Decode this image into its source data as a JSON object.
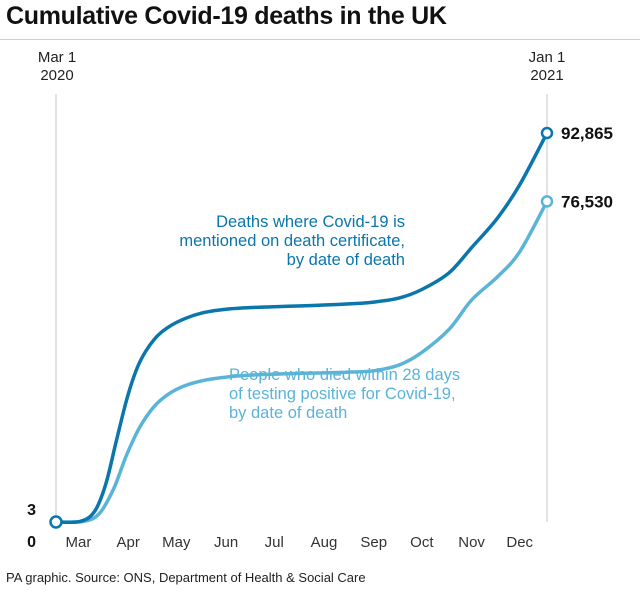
{
  "title": "Cumulative Covid-19 deaths in the UK",
  "start_label": {
    "month": "Mar 1",
    "year": "2020"
  },
  "end_label": {
    "month": "Jan 1",
    "year": "2021"
  },
  "source": "PA graphic. Source: ONS, Department of Health & Social Care",
  "colors": {
    "certificate": "#0a76ab",
    "test28": "#5ab4d8",
    "gridline": "#d9d9d9",
    "axis": "#222222"
  },
  "chart_data": {
    "type": "line",
    "title": "Cumulative Covid-19 deaths in the UK",
    "x_ticks": [
      "Mar",
      "Apr",
      "May",
      "Jun",
      "Jul",
      "Aug",
      "Sep",
      "Oct",
      "Nov",
      "Dec"
    ],
    "xlim": [
      "2020-03-01",
      "2021-01-01"
    ],
    "start_values": [
      "3",
      "0"
    ],
    "series": [
      {
        "key": "certificate",
        "annotation": [
          "Deaths where Covid-19 is",
          "mentioned on death certificate,",
          "by date of death"
        ],
        "end_label": "92,865",
        "points": [
          [
            "2020-03-01",
            3
          ],
          [
            "2020-03-16",
            150
          ],
          [
            "2020-03-25",
            2500
          ],
          [
            "2020-04-01",
            9000
          ],
          [
            "2020-04-08",
            20000
          ],
          [
            "2020-04-15",
            30500
          ],
          [
            "2020-04-22",
            38000
          ],
          [
            "2020-05-01",
            43500
          ],
          [
            "2020-05-10",
            46500
          ],
          [
            "2020-05-20",
            48500
          ],
          [
            "2020-06-01",
            50000
          ],
          [
            "2020-06-15",
            50800
          ],
          [
            "2020-07-01",
            51200
          ],
          [
            "2020-07-15",
            51400
          ],
          [
            "2020-08-01",
            51600
          ],
          [
            "2020-08-15",
            51800
          ],
          [
            "2020-09-01",
            52100
          ],
          [
            "2020-09-15",
            52500
          ],
          [
            "2020-10-01",
            53500
          ],
          [
            "2020-10-15",
            55500
          ],
          [
            "2020-11-01",
            59500
          ],
          [
            "2020-11-15",
            65500
          ],
          [
            "2020-12-01",
            72500
          ],
          [
            "2020-12-15",
            80500
          ],
          [
            "2021-01-01",
            92865
          ]
        ]
      },
      {
        "key": "test28",
        "annotation": [
          "People who died within 28 days",
          "of testing positive for Covid-19,",
          "by date of death"
        ],
        "end_label": "76,530",
        "points": [
          [
            "2020-03-01",
            3
          ],
          [
            "2020-03-18",
            150
          ],
          [
            "2020-03-28",
            2000
          ],
          [
            "2020-04-06",
            8000
          ],
          [
            "2020-04-14",
            16000
          ],
          [
            "2020-04-22",
            22500
          ],
          [
            "2020-05-01",
            27500
          ],
          [
            "2020-05-10",
            30500
          ],
          [
            "2020-05-20",
            32500
          ],
          [
            "2020-06-01",
            33800
          ],
          [
            "2020-06-15",
            34600
          ],
          [
            "2020-07-01",
            35100
          ],
          [
            "2020-07-15",
            35300
          ],
          [
            "2020-08-01",
            35500
          ],
          [
            "2020-08-15",
            35600
          ],
          [
            "2020-09-01",
            35800
          ],
          [
            "2020-09-15",
            36100
          ],
          [
            "2020-10-01",
            37500
          ],
          [
            "2020-10-15",
            40500
          ],
          [
            "2020-11-01",
            46000
          ],
          [
            "2020-11-15",
            53000
          ],
          [
            "2020-12-01",
            58500
          ],
          [
            "2020-12-15",
            64500
          ],
          [
            "2021-01-01",
            76530
          ]
        ]
      }
    ],
    "ylim": [
      0,
      95000
    ],
    "grid": false
  }
}
